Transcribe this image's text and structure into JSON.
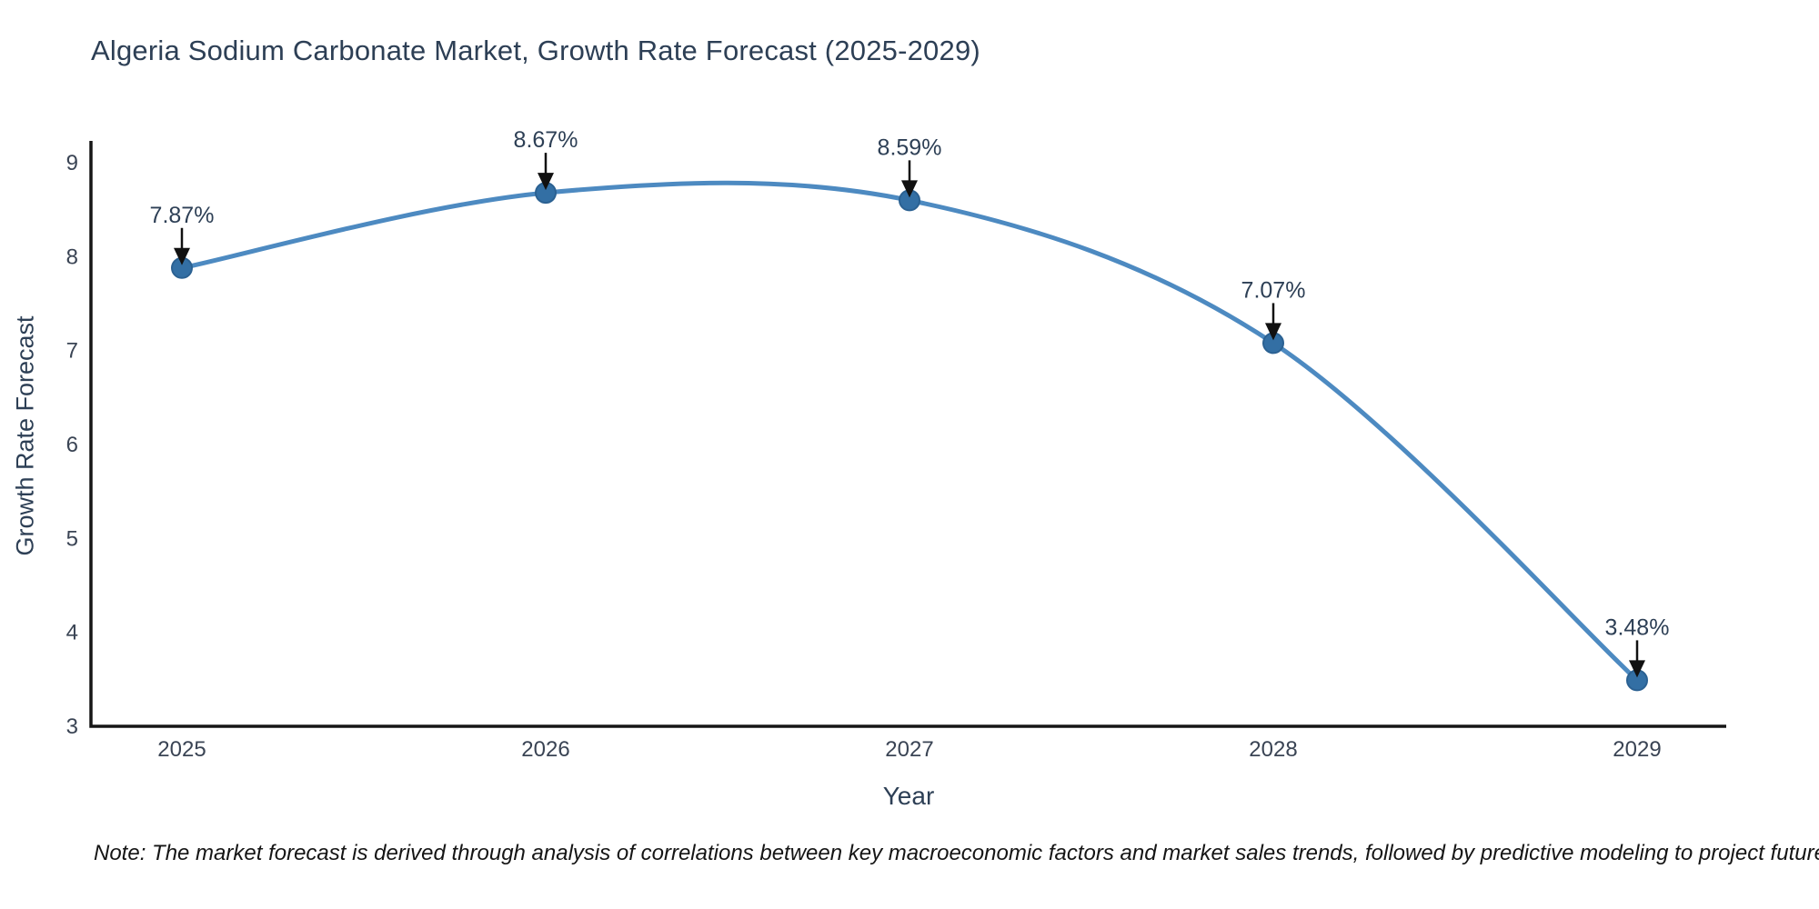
{
  "title": "Algeria Sodium Carbonate Market, Growth Rate Forecast (2025-2029)",
  "note": "Note: The market forecast is derived through analysis of correlations between key macroeconomic factors and market sales trends, followed by predictive modeling to project future sales.",
  "chart_data": {
    "type": "line",
    "title": "Algeria Sodium Carbonate Market, Growth Rate Forecast (2025-2029)",
    "xlabel": "Year",
    "ylabel": "Growth Rate Forecast",
    "categories": [
      "2025",
      "2026",
      "2027",
      "2028",
      "2029"
    ],
    "series": [
      {
        "name": "Growth Rate Forecast",
        "values": [
          7.87,
          8.67,
          8.59,
          7.07,
          3.48
        ],
        "point_labels": [
          "7.87%",
          "8.67%",
          "8.59%",
          "7.07%",
          "3.48%"
        ]
      }
    ],
    "yticks": [
      3,
      4,
      5,
      6,
      7,
      8,
      9
    ],
    "ylim": [
      3,
      9
    ],
    "grid": false,
    "legend_position": "none",
    "line_style": "smooth-spline",
    "colors": {
      "line": "#4d8ac1",
      "marker_fill": "#336fa4",
      "marker_stroke": "#2b6192",
      "axis": "#161616",
      "annotation_arrow": "#111111",
      "text": "#2d3f55"
    }
  }
}
